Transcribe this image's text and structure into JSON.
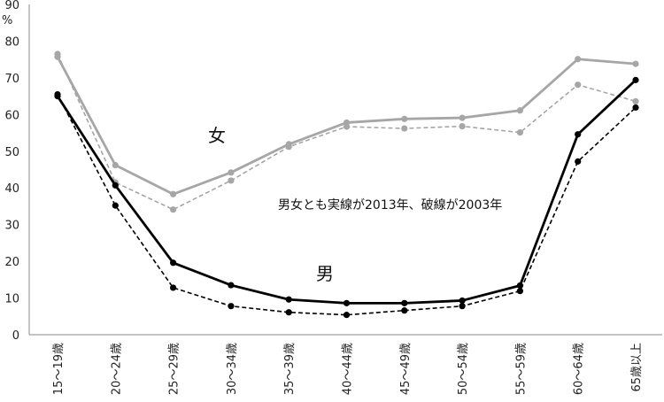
{
  "chart_data": {
    "type": "line",
    "title": "",
    "xlabel": "",
    "ylabel": "%",
    "ylim": [
      0,
      90
    ],
    "yticks": [
      0,
      10,
      20,
      30,
      40,
      50,
      60,
      70,
      80,
      90
    ],
    "grid": false,
    "categories": [
      "15～19歳",
      "20～24歳",
      "25～29歳",
      "30～34歳",
      "35～39歳",
      "40～44歳",
      "45～49歳",
      "50～54歳",
      "55～59歳",
      "60～64歳",
      "65歳以上"
    ],
    "series": [
      {
        "name": "女 2013",
        "color": "#a6a6a6",
        "style": "solid",
        "values": [
          75.7,
          46.2,
          38.3,
          44.2,
          51.9,
          57.8,
          58.8,
          59.1,
          61.1,
          75.1,
          73.8
        ]
      },
      {
        "name": "女 2003",
        "color": "#a6a6a6",
        "style": "dashed",
        "values": [
          76.5,
          41.5,
          34.1,
          42.0,
          51.2,
          56.7,
          56.2,
          56.8,
          55.1,
          68.1,
          63.6
        ]
      },
      {
        "name": "男 2013",
        "color": "#000000",
        "style": "solid",
        "values": [
          65.0,
          40.7,
          19.6,
          13.5,
          9.6,
          8.6,
          8.6,
          9.3,
          13.4,
          54.6,
          69.4
        ]
      },
      {
        "name": "男 2003",
        "color": "#000000",
        "style": "dashed",
        "values": [
          65.5,
          35.2,
          12.8,
          7.8,
          6.1,
          5.4,
          6.6,
          7.8,
          11.9,
          47.2,
          61.9
        ]
      }
    ],
    "annotations": {
      "female": "女",
      "male": "男",
      "note": "男女とも実線が2013年、破線が2003年"
    }
  }
}
